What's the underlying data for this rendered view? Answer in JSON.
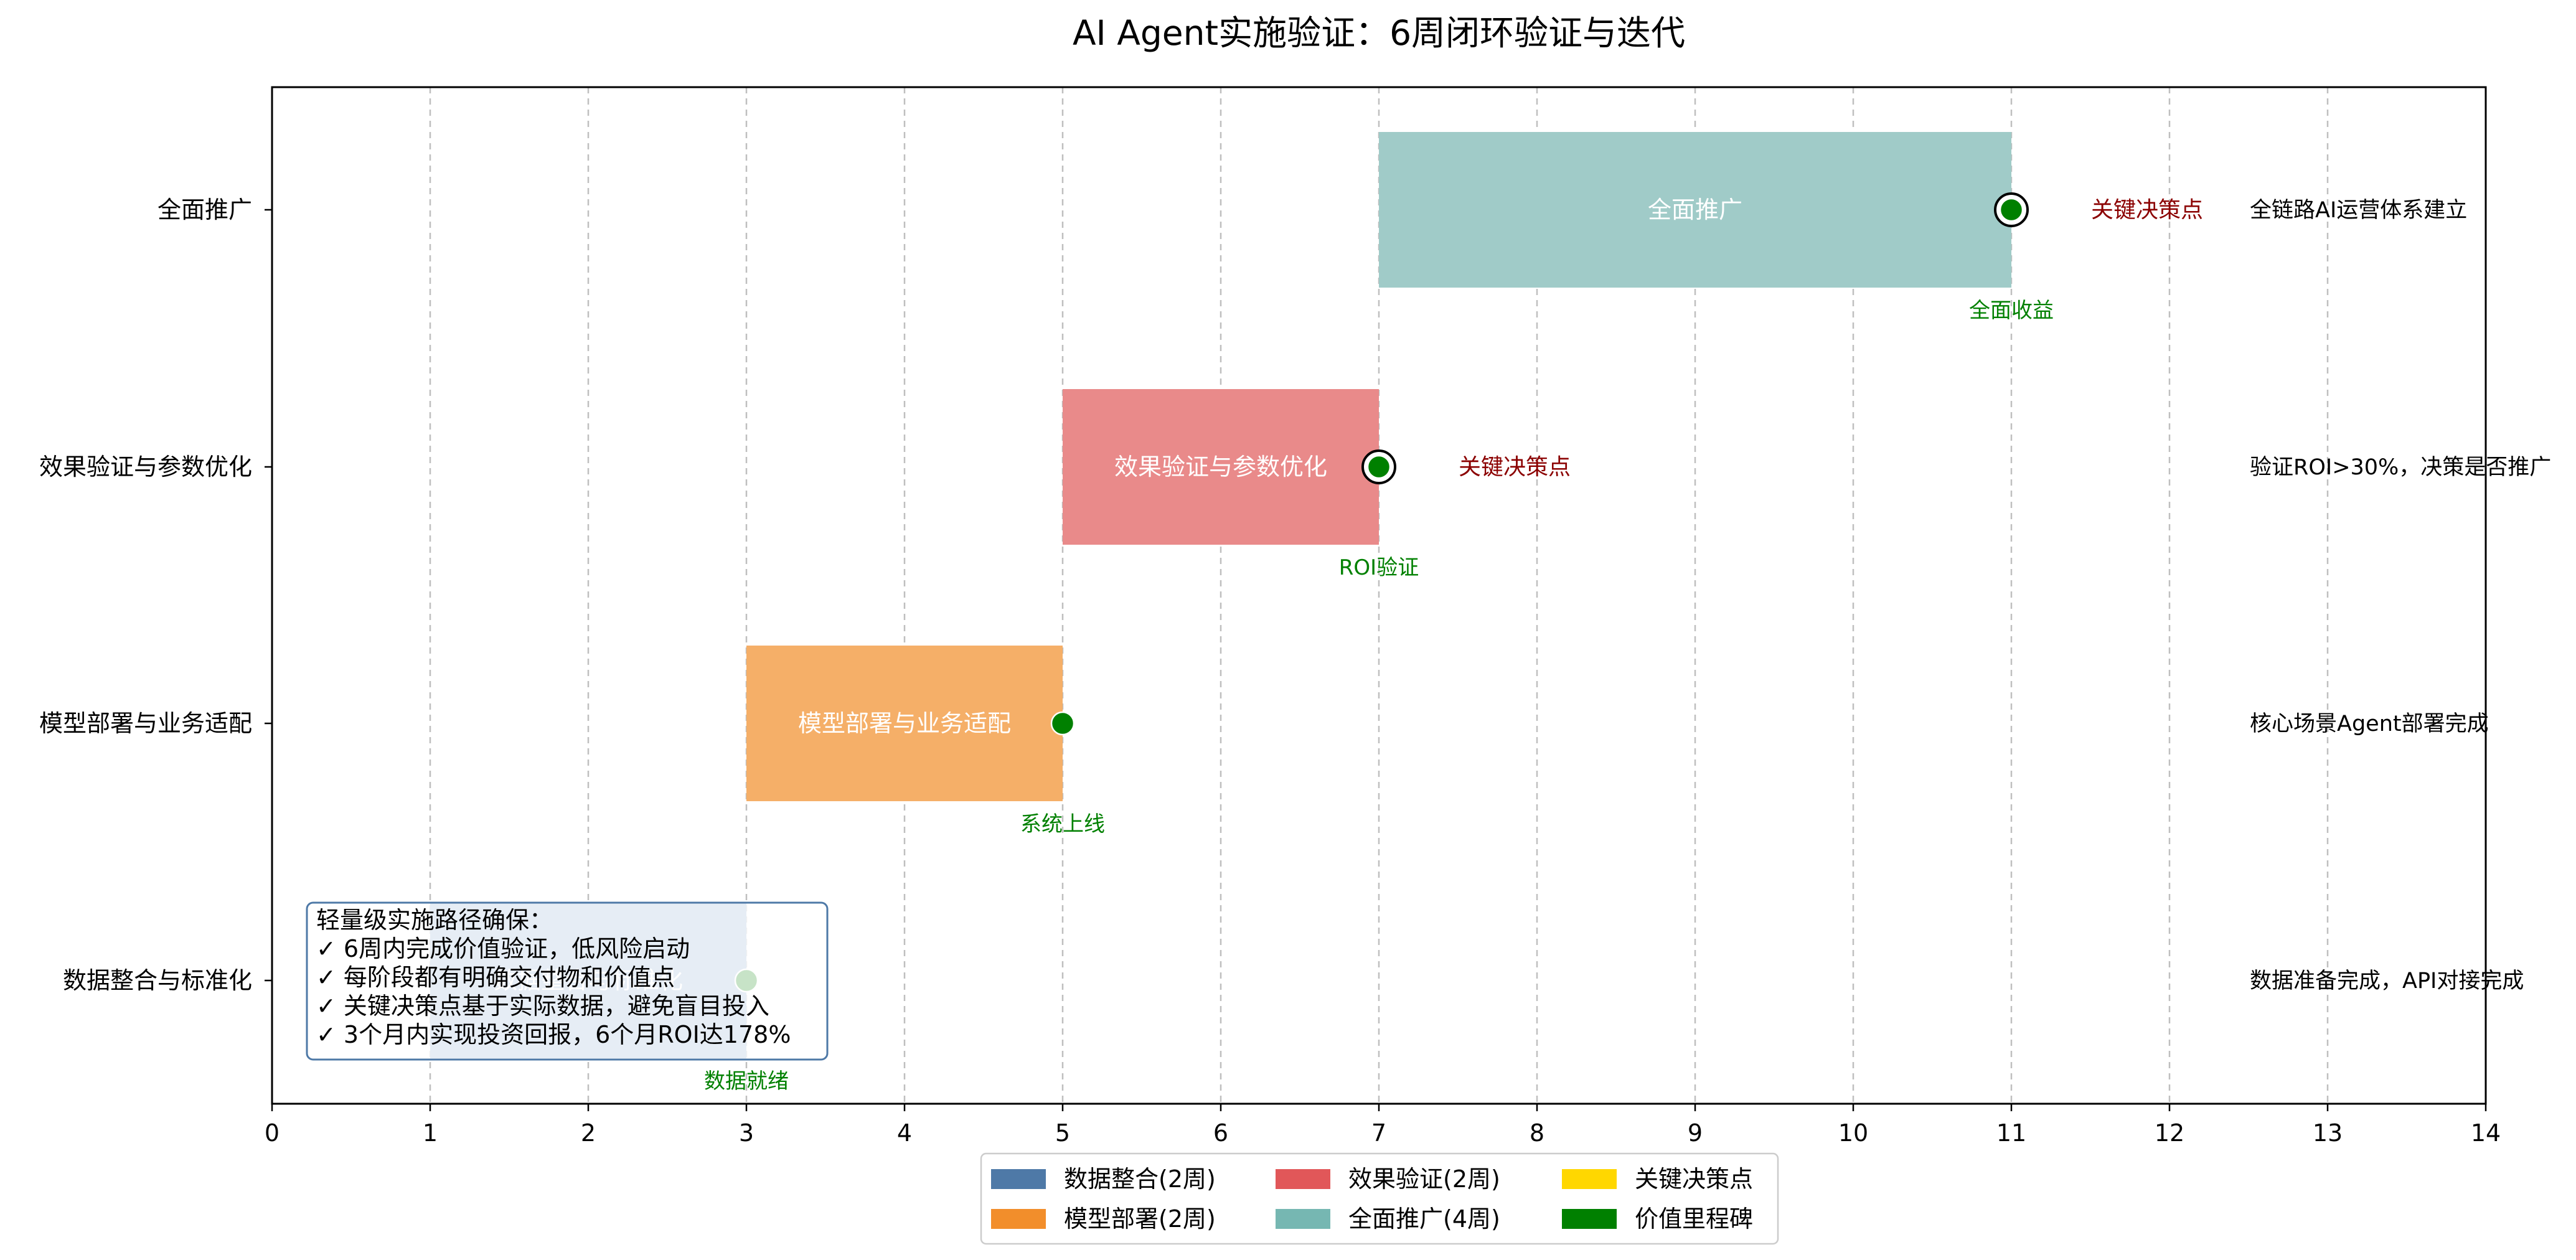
{
  "chart_data": {
    "type": "gantt",
    "title": "AI Agent实施验证：6周闭环验证与迭代",
    "xlim": [
      0,
      14
    ],
    "x_ticks": [
      0,
      1,
      2,
      3,
      4,
      5,
      6,
      7,
      8,
      9,
      10,
      11,
      12,
      13,
      14
    ],
    "grid": "vertical dashed",
    "legend_placement": "bottom-center",
    "tasks": [
      {
        "name": "全面推广",
        "start": 7,
        "end": 11,
        "color": "#a0cbc8",
        "bar_label": "全面推广",
        "milestone": {
          "x": 11,
          "label": "全面收益"
        },
        "decision_point": {
          "x": 11,
          "label": "关键决策点"
        },
        "outcome": "全链路AI运营体系建立"
      },
      {
        "name": "效果验证与参数优化",
        "start": 5,
        "end": 7,
        "color": "#e98a8a",
        "bar_label": "效果验证与参数优化",
        "milestone": {
          "x": 7,
          "label": "ROI验证"
        },
        "decision_point": {
          "x": 7,
          "label": "关键决策点"
        },
        "outcome": "验证ROI>30%，决策是否推广"
      },
      {
        "name": "模型部署与业务适配",
        "start": 3,
        "end": 5,
        "color": "#f5af68",
        "bar_label": "模型部署与业务适配",
        "milestone": {
          "x": 5,
          "label": "系统上线"
        },
        "outcome": "核心场景Agent部署完成"
      },
      {
        "name": "数据整合与标准化",
        "start": 1,
        "end": 3,
        "color": "#8eadd0",
        "bar_label": "数据整合与标准化",
        "milestone": {
          "x": 3,
          "label": "数据就绪"
        },
        "outcome": "数据准备完成，API对接完成"
      }
    ],
    "legend": [
      {
        "label": "数据整合(2周)",
        "color": "#4e79a7"
      },
      {
        "label": "模型部署(2周)",
        "color": "#f28e2b"
      },
      {
        "label": "效果验证(2周)",
        "color": "#e15759"
      },
      {
        "label": "全面推广(4周)",
        "color": "#76b7b2"
      },
      {
        "label": "关键决策点",
        "color": "#ffd700"
      },
      {
        "label": "价值里程碑",
        "color": "#008000"
      }
    ],
    "annotation": [
      "轻量级实施路径确保：",
      "✓ 6周内完成价值验证，低风险启动",
      "✓ 每阶段都有明确交付物和价值点",
      "✓ 关键决策点基于实际数据，避免盲目投入",
      "✓ 3个月内实现投资回报，6个月ROI达178%"
    ]
  }
}
